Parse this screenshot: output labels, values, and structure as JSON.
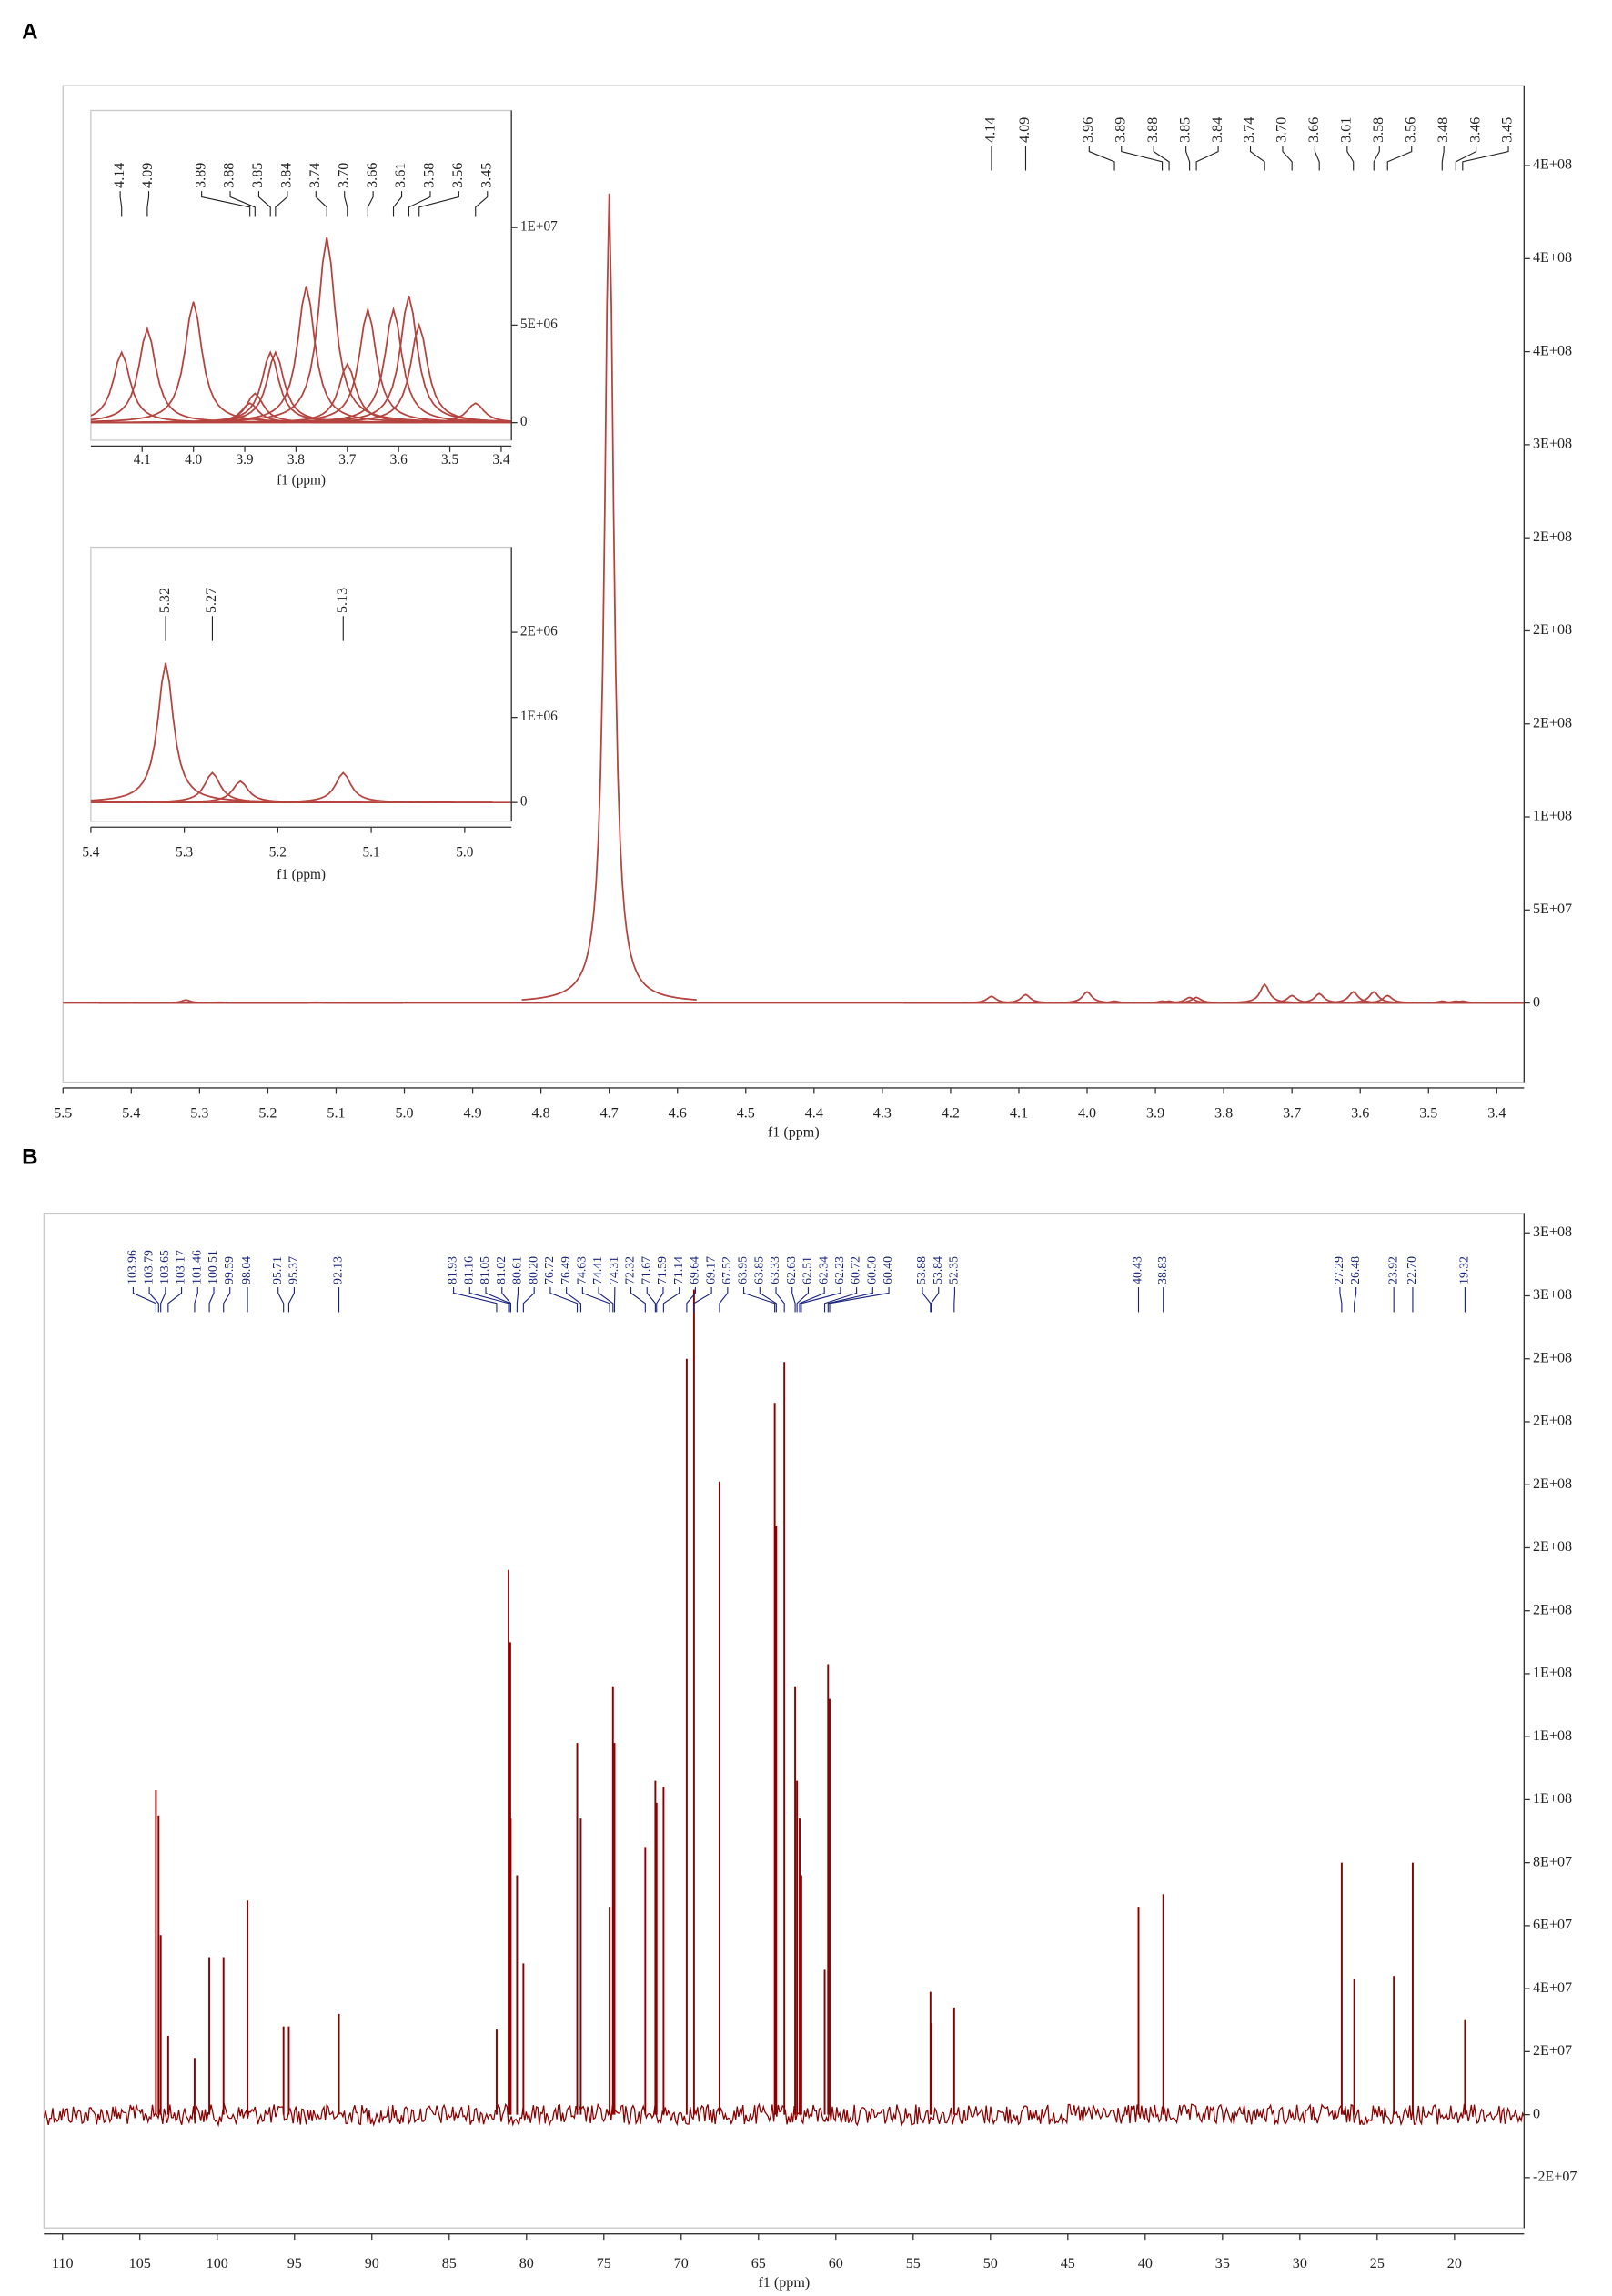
{
  "chart_data": [
    {
      "type": "spectrum",
      "panel": "A",
      "xlabel": "f1 (ppm)",
      "color": "#b5443f",
      "label_color": "#222222",
      "xlim": [
        5.5,
        3.36
      ],
      "ylim": [
        -42500000,
        493000000
      ],
      "xticks": [
        5.5,
        5.4,
        5.3,
        5.2,
        5.1,
        {
          "value": 5,
          "label": "5.0"
        },
        4.9,
        4.8,
        4.7,
        4.6,
        4.5,
        4.4,
        4.3,
        4.2,
        4.1,
        {
          "value": 4,
          "label": "4.0"
        },
        3.9,
        3.8,
        3.7,
        3.6,
        3.5,
        3.4
      ],
      "yticks": [
        0,
        {
          "value": 50000000,
          "label": "5E+07"
        },
        {
          "value": 100000000,
          "label": "1E+08"
        },
        {
          "value": 150000000,
          "label": "2E+08"
        },
        {
          "value": 200000000,
          "label": "2E+08"
        },
        {
          "value": 250000000,
          "label": "2E+08"
        },
        {
          "value": 300000000,
          "label": "3E+08"
        },
        {
          "value": 350000000,
          "label": "4E+08"
        },
        {
          "value": 400000000,
          "label": "4E+08"
        },
        {
          "value": 450000000,
          "label": "4E+08"
        }
      ],
      "x": [
        5.32,
        5.27,
        5.13,
        4.14,
        4.09,
        3.96,
        3.89,
        3.88,
        3.85,
        3.84,
        3.74,
        {
          "value": 3.7,
          "label": "3.70"
        },
        3.66,
        3.61,
        3.58,
        3.56,
        3.48,
        3.46,
        3.45
      ],
      "values": [
        1600000,
        400000,
        400000,
        3600000,
        4500000,
        1000000,
        1000000,
        1000000,
        3000000,
        3000000,
        10000000,
        4000000,
        5000000,
        6000000,
        6000000,
        4000000,
        1000000,
        1000000,
        1000000
      ],
      "unlabeled_peaks": {
        "x": [
          4.7,
          4.0
        ],
        "values": [
          435000000,
          6000000
        ]
      }
    },
    {
      "type": "spectrum",
      "xlabel": "f1 (ppm)",
      "color": "#b5443f",
      "label_color": "#222222",
      "xlim": [
        4.2,
        3.38
      ],
      "ylim": [
        -900000,
        16000000
      ],
      "xticks": [
        4.1,
        {
          "value": 4,
          "label": "4.0"
        },
        3.9,
        3.8,
        3.7,
        3.6,
        3.5,
        3.4
      ],
      "yticks": [
        0,
        {
          "value": 5000000,
          "label": "5E+06"
        },
        {
          "value": 10000000,
          "label": "1E+07"
        }
      ],
      "x": [
        4.14,
        4.09,
        3.89,
        3.88,
        3.85,
        3.84,
        3.74,
        {
          "value": 3.7,
          "label": "3.70"
        },
        3.66,
        3.61,
        3.58,
        3.56,
        3.45
      ],
      "values": [
        3600000,
        4800000,
        1000000,
        1500000,
        3600000,
        3600000,
        9500000,
        3000000,
        5800000,
        5800000,
        6500000,
        5000000,
        1000000
      ],
      "unlabeled_peaks": {
        "x": [
          4.0,
          3.78
        ],
        "values": [
          6200000,
          7000000
        ]
      }
    },
    {
      "type": "spectrum",
      "xlabel": "f1 (ppm)",
      "color": "#b5443f",
      "label_color": "#222222",
      "xlim": [
        5.4,
        4.95
      ],
      "ylim": [
        -220000,
        3000000
      ],
      "xticks": [
        5.4,
        5.3,
        5.2,
        5.1,
        {
          "value": 5,
          "label": "5.0"
        }
      ],
      "yticks": [
        0,
        {
          "value": 1000000,
          "label": "1E+06"
        },
        {
          "value": 2000000,
          "label": "2E+06"
        }
      ],
      "x": [
        5.32,
        5.27,
        5.13
      ],
      "values": [
        1640000,
        350000,
        350000
      ],
      "unlabeled_peaks": {
        "x": [
          5.24
        ],
        "values": [
          250000
        ]
      }
    },
    {
      "type": "sticks",
      "panel": "B",
      "xlabel": "f1 (ppm)",
      "color": "#8b0000",
      "label_color": "#1a237e",
      "xlim": [
        111.2,
        15.5
      ],
      "ylim": [
        -36000000,
        286000000
      ],
      "xticks": [
        110,
        105,
        100,
        95,
        90,
        85,
        80,
        75,
        70,
        65,
        60,
        55,
        50,
        45,
        40,
        35,
        30,
        25,
        20
      ],
      "yticks": [
        {
          "value": -20000000,
          "label": "-2E+07"
        },
        0,
        {
          "value": 20000000,
          "label": "2E+07"
        },
        {
          "value": 40000000,
          "label": "4E+07"
        },
        {
          "value": 60000000,
          "label": "6E+07"
        },
        {
          "value": 80000000,
          "label": "8E+07"
        },
        {
          "value": 100000000,
          "label": "1E+08"
        },
        {
          "value": 120000000,
          "label": "1E+08"
        },
        {
          "value": 140000000,
          "label": "1E+08"
        },
        {
          "value": 160000000,
          "label": "2E+08"
        },
        {
          "value": 180000000,
          "label": "2E+08"
        },
        {
          "value": 200000000,
          "label": "2E+08"
        },
        {
          "value": 220000000,
          "label": "2E+08"
        },
        {
          "value": 240000000,
          "label": "2E+08"
        },
        {
          "value": 260000000,
          "label": "3E+08"
        },
        {
          "value": 280000000,
          "label": "3E+08"
        }
      ],
      "x": [
        103.96,
        103.79,
        103.65,
        103.17,
        101.46,
        100.51,
        99.59,
        98.04,
        95.71,
        95.37,
        92.13,
        81.93,
        81.16,
        81.05,
        81.02,
        80.61,
        {
          "value": 80.2,
          "label": "80.20"
        },
        76.72,
        76.49,
        74.63,
        74.41,
        74.31,
        72.32,
        71.67,
        71.59,
        71.14,
        69.64,
        69.17,
        67.52,
        63.95,
        63.85,
        63.33,
        62.63,
        62.51,
        62.34,
        62.23,
        60.72,
        {
          "value": 60.5,
          "label": "60.50"
        },
        {
          "value": 60.4,
          "label": "60.40"
        },
        53.88,
        53.84,
        52.35,
        40.43,
        38.83,
        27.29,
        26.48,
        23.92,
        {
          "value": 22.7,
          "label": "22.70"
        },
        19.32
      ],
      "values": [
        103000000,
        95000000,
        57000000,
        25000000,
        18000000,
        50000000,
        50000000,
        68000000,
        28000000,
        28000000,
        32000000,
        27000000,
        173000000,
        150000000,
        94000000,
        76000000,
        48000000,
        118000000,
        94000000,
        66000000,
        136000000,
        118000000,
        85000000,
        106000000,
        99000000,
        104000000,
        240000000,
        262000000,
        201000000,
        226000000,
        187000000,
        239000000,
        136000000,
        106000000,
        94000000,
        76000000,
        46000000,
        143000000,
        132000000,
        39000000,
        29000000,
        34000000,
        66000000,
        70000000,
        80000000,
        43000000,
        44000000,
        80000000,
        30000000
      ]
    }
  ]
}
